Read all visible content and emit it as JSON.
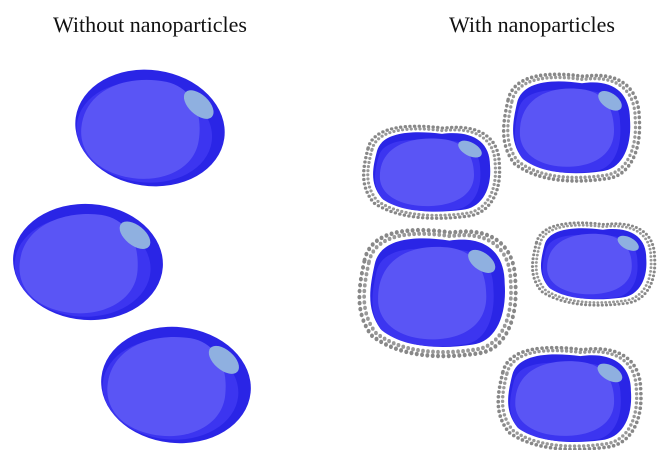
{
  "panels": [
    {
      "title": "Without nanoparticles"
    },
    {
      "title": "With nanoparticles"
    }
  ]
}
